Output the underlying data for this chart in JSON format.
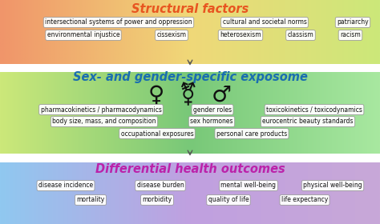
{
  "title1": "Structural factors",
  "title1_color": "#e85520",
  "title2": "Sex- and gender-specific exposome",
  "title2_color": "#1a6eb0",
  "title3": "Differential health outcomes",
  "title3_color": "#bb22aa",
  "section1_tags_row1": [
    "intersectional systems of power and oppression",
    "cultural and societal norms",
    "patriarchy"
  ],
  "section1_tags_row2": [
    "environmental injustice",
    "cissexism",
    "heterosexism",
    "classism",
    "racism"
  ],
  "section2_tags_row1": [
    "pharmacokinetics / pharmacodynamics",
    "gender roles",
    "toxicokinetics / toxicodynamics"
  ],
  "section2_tags_row2": [
    "body size, mass, and composition",
    "sex hormones",
    "eurocentric beauty standards"
  ],
  "section2_tags_row3": [
    "occupational exposures",
    "personal care products"
  ],
  "section3_tags_row1": [
    "disease incidence",
    "disease burden",
    "mental well-being",
    "physical well-being"
  ],
  "section3_tags_row2": [
    "mortality",
    "morbidity",
    "quality of life",
    "life expectancy"
  ],
  "s1_grad": [
    "#f0956a",
    "#f0d878",
    "#cce87a"
  ],
  "s2_grad": [
    "#cce87a",
    "#78c878",
    "#a8e8a0"
  ],
  "s3_grad": [
    "#90c8f0",
    "#c0a0e0",
    "#c8a8d8"
  ],
  "tag_bg": "#ffffff",
  "tag_border": "#999999",
  "tag_text": "#111111",
  "tag_fontsize": 5.5,
  "title_fontsize": 10.5,
  "gender_symbols": "♀  ⚧  ♂"
}
